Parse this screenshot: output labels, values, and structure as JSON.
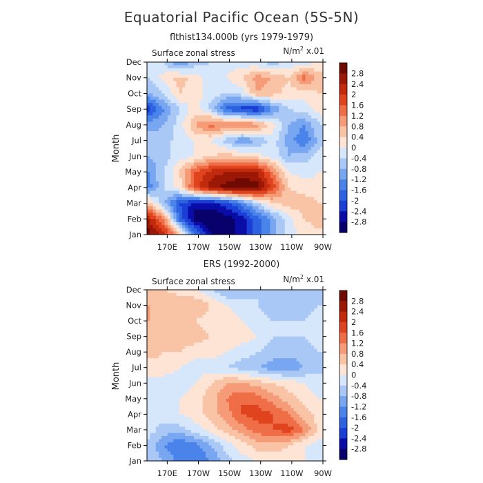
{
  "figure": {
    "title": "Equatorial Pacific Ocean (5S-5N)"
  },
  "colors": {
    "levels": [
      "#08006b",
      "#0a0ca8",
      "#1a3ed6",
      "#2d62e0",
      "#4a84ea",
      "#79a6f0",
      "#a9c8f6",
      "#d6e6fb",
      "#fde4d4",
      "#f9c3a6",
      "#f59b77",
      "#ef6e47",
      "#e0441f",
      "#c22a0e",
      "#9c1806",
      "#6e0a02"
    ],
    "boundaries": [
      -3.2,
      -2.8,
      -2.4,
      -2,
      -1.6,
      -1.2,
      -0.8,
      -0.4,
      0,
      0.4,
      0.8,
      1.2,
      1.6,
      2,
      2.4,
      2.8,
      3.2
    ]
  },
  "chart_data": [
    {
      "type": "heatmap",
      "title": "flthist134.000b (yrs 1979-1979)",
      "left_label": "Surface zonal stress",
      "right_label": "N/m",
      "units_sup": "2",
      "units_scale": " x.01",
      "ylabel": "Month",
      "x_ticks": [
        "170E",
        "170W",
        "150W",
        "130W",
        "110W",
        "90W"
      ],
      "x_tick_lon": [
        170,
        190,
        210,
        230,
        250,
        270
      ],
      "xlim": [
        157,
        270
      ],
      "y_ticks": [
        "Jan",
        "Feb",
        "Mar",
        "Apr",
        "May",
        "Jun",
        "Jul",
        "Aug",
        "Sep",
        "Oct",
        "Nov",
        "Dec"
      ],
      "colorbar_labels": [
        "2.8",
        "2.4",
        "2",
        "1.6",
        "1.2",
        "0.8",
        "0.4",
        "0",
        "-0.4",
        "-0.8",
        "-1.2",
        "-1.6",
        "-2",
        "-2.4",
        "-2.8"
      ],
      "lon": [
        158,
        168,
        178,
        188,
        198,
        208,
        218,
        228,
        238,
        248,
        258,
        268
      ],
      "months": [
        "Jan",
        "Feb",
        "Mar",
        "Apr",
        "May",
        "Jun",
        "Jul",
        "Aug",
        "Sep",
        "Oct",
        "Nov",
        "Dec"
      ],
      "values": [
        [
          3.0,
          2.2,
          0.6,
          -1.5,
          -2.8,
          -3.0,
          -2.6,
          -1.8,
          -1.0,
          -0.2,
          0.2,
          0.3
        ],
        [
          2.4,
          1.2,
          -1.8,
          -3.0,
          -3.2,
          -3.0,
          -2.6,
          -1.8,
          -1.0,
          -0.2,
          0.4,
          0.6
        ],
        [
          0.6,
          -0.8,
          -2.0,
          -2.6,
          -2.6,
          -2.2,
          -1.4,
          -0.4,
          0.4,
          0.6,
          0.6,
          0.4
        ],
        [
          -1.4,
          -0.4,
          0.2,
          1.8,
          2.6,
          3.0,
          3.2,
          3.0,
          1.8,
          0.4,
          0.2,
          0.2
        ],
        [
          -1.2,
          -0.4,
          0.4,
          1.6,
          2.2,
          2.4,
          2.6,
          2.4,
          1.2,
          0.0,
          -0.2,
          0.0
        ],
        [
          -0.8,
          -0.6,
          -0.2,
          0.0,
          0.4,
          0.6,
          0.4,
          0.2,
          -0.2,
          -0.8,
          -0.6,
          -0.2
        ],
        [
          -0.6,
          -0.6,
          -0.2,
          0.0,
          0.0,
          -0.6,
          -1.2,
          -0.8,
          -0.2,
          -1.0,
          -1.6,
          -0.6
        ],
        [
          -1.0,
          -0.8,
          -0.2,
          0.8,
          1.4,
          1.2,
          1.4,
          1.0,
          0.2,
          -0.8,
          -1.2,
          -0.4
        ],
        [
          -2.2,
          -1.2,
          -0.4,
          0.2,
          -0.6,
          -1.8,
          -2.2,
          -2.4,
          -1.2,
          -0.4,
          -0.2,
          0.2
        ],
        [
          -0.8,
          -0.4,
          0.4,
          0.2,
          -0.2,
          -0.4,
          -0.2,
          0.8,
          0.6,
          0.2,
          0.2,
          0.4
        ],
        [
          -0.4,
          0.2,
          0.6,
          0.2,
          -0.2,
          0.0,
          0.4,
          1.0,
          0.8,
          0.4,
          1.4,
          0.6
        ],
        [
          -0.2,
          -0.4,
          -1.4,
          -0.6,
          -0.4,
          -0.2,
          -0.2,
          -0.4,
          -0.6,
          -0.4,
          -0.2,
          0.0
        ]
      ]
    },
    {
      "type": "heatmap",
      "title": "ERS (1992-2000)",
      "left_label": "Surface zonal stress",
      "right_label": "N/m",
      "units_sup": "2",
      "units_scale": " x.01",
      "ylabel": "Month",
      "x_ticks": [
        "170E",
        "170W",
        "150W",
        "130W",
        "110W",
        "90W"
      ],
      "x_tick_lon": [
        170,
        190,
        210,
        230,
        250,
        270
      ],
      "xlim": [
        157,
        270
      ],
      "y_ticks": [
        "Jan",
        "Feb",
        "Mar",
        "Apr",
        "May",
        "Jun",
        "Jul",
        "Aug",
        "Sep",
        "Oct",
        "Nov",
        "Dec"
      ],
      "colorbar_labels": [
        "2.8",
        "2.4",
        "2",
        "1.6",
        "1.2",
        "0.8",
        "0.4",
        "0",
        "-0.4",
        "-0.8",
        "-1.2",
        "-1.6",
        "-2",
        "-2.4",
        "-2.8"
      ],
      "lon": [
        158,
        168,
        178,
        188,
        198,
        208,
        218,
        228,
        238,
        248,
        258,
        268
      ],
      "months": [
        "Jan",
        "Feb",
        "Mar",
        "Apr",
        "May",
        "Jun",
        "Jul",
        "Aug",
        "Sep",
        "Oct",
        "Nov",
        "Dec"
      ],
      "values": [
        [
          -0.4,
          -0.8,
          -1.4,
          -1.6,
          -1.2,
          -0.6,
          -0.2,
          0.0,
          0.2,
          0.2,
          0.0,
          -0.2
        ],
        [
          -0.6,
          -1.2,
          -1.6,
          -1.4,
          -0.8,
          -0.2,
          0.2,
          0.6,
          0.6,
          0.4,
          0.0,
          -0.2
        ],
        [
          -0.2,
          -0.6,
          -0.6,
          -0.2,
          0.2,
          0.6,
          1.0,
          1.4,
          1.6,
          1.8,
          1.2,
          0.2
        ],
        [
          -0.2,
          -0.2,
          0.0,
          0.2,
          0.6,
          1.0,
          1.6,
          1.8,
          1.6,
          1.2,
          0.6,
          0.2
        ],
        [
          -0.2,
          -0.2,
          0.0,
          0.2,
          0.6,
          1.2,
          1.6,
          1.4,
          1.0,
          0.6,
          0.2,
          0.0
        ],
        [
          -0.2,
          -0.2,
          -0.2,
          0.0,
          0.4,
          0.8,
          0.8,
          0.6,
          0.4,
          0.2,
          0.0,
          -0.2
        ],
        [
          0.2,
          0.2,
          0.0,
          -0.2,
          -0.2,
          -0.4,
          -0.6,
          -0.8,
          -1.0,
          -1.2,
          -0.8,
          -0.6
        ],
        [
          0.6,
          0.4,
          0.4,
          0.2,
          0.2,
          0.0,
          -0.2,
          -0.4,
          -0.6,
          -0.6,
          -0.6,
          -0.4
        ],
        [
          0.6,
          0.6,
          0.6,
          0.6,
          0.4,
          0.4,
          0.2,
          0.0,
          -0.4,
          -0.4,
          -0.4,
          -0.2
        ],
        [
          0.8,
          0.8,
          0.6,
          0.4,
          0.2,
          0.2,
          0.0,
          -0.2,
          -0.4,
          -0.4,
          -0.4,
          -0.2
        ],
        [
          0.8,
          0.6,
          0.8,
          0.8,
          0.4,
          0.0,
          -0.2,
          -0.4,
          -0.6,
          -0.8,
          -0.6,
          -0.4
        ],
        [
          0.6,
          0.4,
          0.2,
          0.0,
          -0.4,
          -0.8,
          -0.8,
          -0.4,
          -0.6,
          -0.8,
          -0.8,
          -0.6
        ]
      ]
    }
  ]
}
